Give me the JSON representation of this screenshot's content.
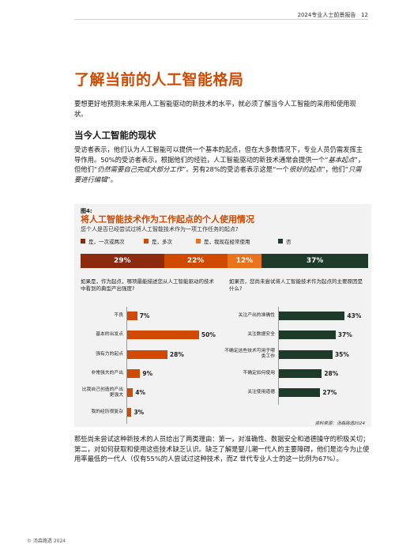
{
  "header": {
    "title": "2024专业人士前景报告",
    "page": "12"
  },
  "main_title": "了解当前的人工智能格局",
  "intro": "要想更好地预测未来采用人工智能驱动的新技术的水平，就必须了解当今人工智能的采用和使用现状。",
  "section_heading": "当今人工智能的现状",
  "body1": {
    "p1": "受访者表示，他们认为人工智能可以提供一个基本的起点，但在大多数情况下，专业人员仍需发挥主导作用。50%的受访者表示，根据他们的经验，人工智能驱动的新技术通常会提供一个“",
    "em1": "基本起点",
    "p2": "”，但他们“",
    "em2": "仍然需要自己完成大部分工作",
    "p3": "”。另有28%的受访者表示这是“一个",
    "em3": "很好的起点",
    "p4": "”，他们“",
    "em4": "只需要进行编辑",
    "p5": "”。"
  },
  "figure": {
    "label": "图4:",
    "title": "将人工智能技术作为工作起点的个人使用情况",
    "question": "您个人是否已经尝试过将人工智能技术作为一项工作任务的起点?",
    "legend": [
      {
        "label": "是，一次或两次",
        "color": "#8c2a10"
      },
      {
        "label": "是，多次",
        "color": "#d04a02"
      },
      {
        "label": "是，我现在经常使用",
        "color": "#e8731c"
      },
      {
        "label": "否",
        "color": "#1d3a2a"
      }
    ],
    "left_question": "如果是，作为起点，哪项最能描述您从人工智能驱动的技术中看到的典型产出强度?",
    "right_question": "如果否，您尚未尝试将人工智能技术作为起点的主要原因是什么?",
    "source": "资料来源：汤森路透2024"
  },
  "body2": "那些尚未尝试这种新技术的人员给出了两类理由：第一，对准确性、数据安全和道德操守的积极关切；第二，对如何获取和使用这些技术缺乏认识。缺乏了解是婴儿潮一代人的主要障碍，他们是迄今为止使用率最低的一代人（仅有55%的人尝试过这种技术，而Z 世代专业人士的这一比例为67%）。",
  "footer": "© 汤森路透 2024",
  "chart_data": [
    {
      "type": "bar",
      "orientation": "stacked-horizontal",
      "categories": [
        "是，一次或两次",
        "是，多次",
        "是，我现在经常使用",
        "否"
      ],
      "values": [
        29,
        22,
        12,
        37
      ],
      "labels": [
        "29%",
        "22%",
        "12%",
        "37%"
      ],
      "colors": [
        "#8c2a10",
        "#d04a02",
        "#e8731c",
        "#1d3a2a"
      ]
    },
    {
      "type": "bar",
      "orientation": "horizontal",
      "categories": [
        "不良",
        "基本的出发点",
        "强有力的起点",
        "非常强大的产出",
        "比我自己创造的产出更强大",
        "我的经历很复杂"
      ],
      "values": [
        7,
        50,
        28,
        9,
        4,
        3
      ],
      "labels": [
        "7%",
        "50%",
        "28%",
        "9%",
        "4%",
        "3%"
      ],
      "color": "#d04a02",
      "xlim": [
        0,
        55
      ]
    },
    {
      "type": "bar",
      "orientation": "horizontal",
      "categories": [
        "关注产出的准确性",
        "关注数据安全",
        "不确定这些技术可用于哪类工作",
        "不确定如何使用",
        "关注使用道德"
      ],
      "values": [
        43,
        37,
        35,
        28,
        27
      ],
      "labels": [
        "43%",
        "37%",
        "35%",
        "28%",
        "27%"
      ],
      "color": "#1d3a2a",
      "xlim": [
        0,
        50
      ]
    }
  ]
}
